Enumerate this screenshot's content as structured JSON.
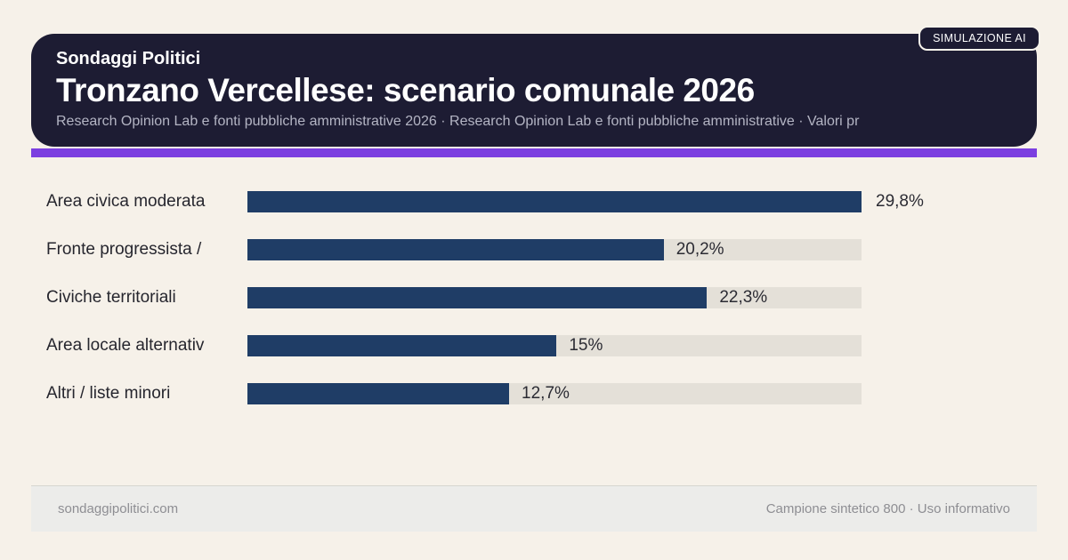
{
  "header": {
    "badge": "SIMULAZIONE AI",
    "kicker": "Sondaggi Politici",
    "title": "Tronzano Vercellese: scenario comunale 2026",
    "subtitle": "Research Opinion Lab e fonti pubbliche amministrative 2026 · Research Opinion Lab e fonti pubbliche amministrative · Valori pr"
  },
  "chart_data": {
    "type": "bar",
    "orientation": "horizontal",
    "categories": [
      "Area civica moderata",
      "Fronte progressista /",
      "Civiche territoriali",
      "Area locale alternativ",
      "Altri / liste minori"
    ],
    "values": [
      29.8,
      20.2,
      22.3,
      15,
      12.7
    ],
    "value_labels": [
      "29,8%",
      "20,2%",
      "22,3%",
      "15%",
      "12,7%"
    ],
    "scale_max": 29.8,
    "bar_color": "#1f3d66",
    "track_color": "#e4e0d8",
    "grid": false,
    "legend": false
  },
  "footer": {
    "left": "sondaggipolitici.com",
    "right": "Campione sintetico 800 · Uso informativo"
  },
  "colors": {
    "accent": "#7c3fe0",
    "header_bg": "#1d1c33",
    "page_bg": "#f6f1e9",
    "bar": "#1f3d66",
    "track": "#e4e0d8",
    "footer_bg": "#ececea"
  }
}
